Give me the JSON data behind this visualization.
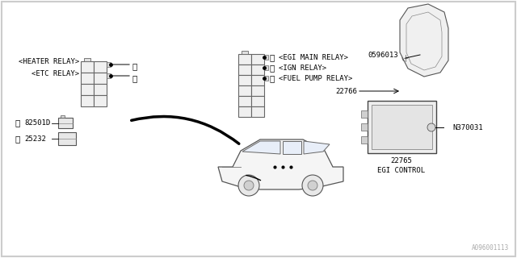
{
  "bg_color": "#ffffff",
  "border_color": "#000000",
  "title": "EGI CONTROL",
  "watermark": "A096001113",
  "labels": {
    "heater_relay": "<HEATER RELAY>",
    "etc_relay": "<ETC RELAY>",
    "egi_main_relay": "<EGI MAIN RELAY>",
    "ign_relay": "<IGN RELAY>",
    "fuel_pump_relay": "<FUEL PUMP RELAY>",
    "part1": "82501D",
    "part2": "25232",
    "part3": "0596013",
    "part4": "22766",
    "part5": "22765",
    "n370031": "N370031"
  },
  "circle1": "①",
  "circle2": "②",
  "font_size": 6.5
}
